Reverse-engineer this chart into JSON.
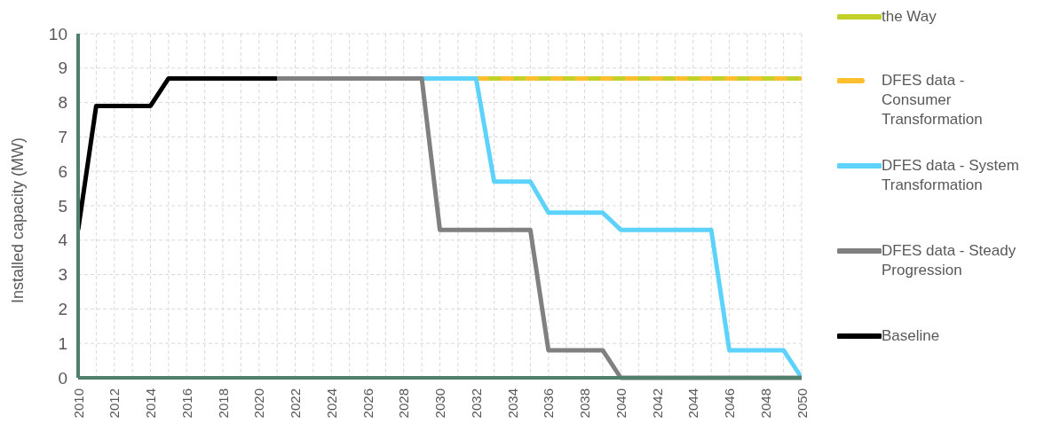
{
  "chart_data": {
    "type": "line",
    "ylabel": "Installed capacity (MW)",
    "x": [
      2010,
      2011,
      2012,
      2013,
      2014,
      2015,
      2016,
      2017,
      2018,
      2019,
      2020,
      2021,
      2022,
      2023,
      2024,
      2025,
      2026,
      2027,
      2028,
      2029,
      2030,
      2031,
      2032,
      2033,
      2034,
      2035,
      2036,
      2037,
      2038,
      2039,
      2040,
      2041,
      2042,
      2043,
      2044,
      2045,
      2046,
      2047,
      2048,
      2049,
      2050
    ],
    "series": [
      {
        "name": "the Way",
        "color": "#c2d02a",
        "line_style": "solid",
        "values": [
          null,
          null,
          null,
          null,
          null,
          null,
          null,
          null,
          null,
          null,
          null,
          null,
          null,
          null,
          null,
          null,
          null,
          null,
          null,
          null,
          null,
          null,
          8.7,
          8.7,
          8.7,
          8.7,
          8.7,
          8.7,
          8.7,
          8.7,
          8.7,
          8.7,
          8.7,
          8.7,
          8.7,
          8.7,
          8.7,
          8.7,
          8.7,
          8.7,
          8.7
        ]
      },
      {
        "name": "DFES data - Consumer Transformation",
        "color": "#fdbf2d",
        "line_style": "dashed",
        "values": [
          null,
          null,
          null,
          null,
          null,
          null,
          null,
          null,
          null,
          null,
          null,
          null,
          null,
          null,
          null,
          null,
          null,
          null,
          null,
          null,
          null,
          null,
          8.7,
          8.7,
          8.7,
          8.7,
          8.7,
          8.7,
          8.7,
          8.7,
          8.7,
          8.7,
          8.7,
          8.7,
          8.7,
          8.7,
          8.7,
          8.7,
          8.7,
          8.7,
          8.7
        ]
      },
      {
        "name": "DFES data - System Transformation",
        "color": "#5dd3fc",
        "line_style": "solid",
        "values": [
          null,
          null,
          null,
          null,
          null,
          null,
          null,
          null,
          null,
          null,
          null,
          null,
          null,
          null,
          null,
          null,
          null,
          null,
          null,
          8.7,
          8.7,
          8.7,
          8.7,
          5.7,
          5.7,
          5.7,
          4.8,
          4.8,
          4.8,
          4.8,
          4.3,
          4.3,
          4.3,
          4.3,
          4.3,
          4.3,
          0.8,
          0.8,
          0.8,
          0.8,
          0
        ]
      },
      {
        "name": "DFES data - Steady Progression",
        "color": "#808080",
        "line_style": "solid",
        "values": [
          null,
          null,
          null,
          null,
          null,
          null,
          null,
          null,
          null,
          null,
          null,
          8.7,
          8.7,
          8.7,
          8.7,
          8.7,
          8.7,
          8.7,
          8.7,
          8.7,
          4.3,
          4.3,
          4.3,
          4.3,
          4.3,
          4.3,
          0.8,
          0.8,
          0.8,
          0.8,
          0,
          0,
          0,
          0,
          0,
          0,
          0,
          0,
          0,
          0,
          0
        ]
      },
      {
        "name": "Baseline",
        "color": "#000000",
        "line_style": "solid",
        "values": [
          4.3,
          7.9,
          7.9,
          7.9,
          7.9,
          8.7,
          8.7,
          8.7,
          8.7,
          8.7,
          8.7,
          8.7,
          null,
          null,
          null,
          null,
          null,
          null,
          null,
          null,
          null,
          null,
          null,
          null,
          null,
          null,
          null,
          null,
          null,
          null,
          null,
          null,
          null,
          null,
          null,
          null,
          null,
          null,
          null,
          null,
          null
        ]
      }
    ],
    "xlim": [
      2010,
      2050
    ],
    "xticks": [
      2010,
      {
        "value": 2011,
        "label": null
      },
      2012,
      {
        "value": 2013,
        "label": null
      },
      2014,
      {
        "value": 2015,
        "label": null
      },
      2016,
      {
        "value": 2017,
        "label": null
      },
      2018,
      {
        "value": 2019,
        "label": null
      },
      2020,
      {
        "value": 2021,
        "label": null
      },
      2022,
      {
        "value": 2023,
        "label": null
      },
      2024,
      {
        "value": 2025,
        "label": null
      },
      2026,
      {
        "value": 2027,
        "label": null
      },
      2028,
      {
        "value": 2029,
        "label": null
      },
      2030,
      {
        "value": 2031,
        "label": null
      },
      2032,
      {
        "value": 2033,
        "label": null
      },
      2034,
      {
        "value": 2035,
        "label": null
      },
      2036,
      {
        "value": 2037,
        "label": null
      },
      2038,
      {
        "value": 2039,
        "label": null
      },
      2040,
      {
        "value": 2041,
        "label": null
      },
      2042,
      {
        "value": 2043,
        "label": null
      },
      2044,
      {
        "value": 2045,
        "label": null
      },
      2046,
      {
        "value": 2047,
        "label": null
      },
      2048,
      {
        "value": 2049,
        "label": null
      },
      2050
    ],
    "ylim": [
      0,
      10
    ],
    "yticks": [
      0,
      1,
      2,
      3,
      4,
      5,
      6,
      7,
      8,
      9,
      10
    ],
    "grid": true,
    "legend": "right",
    "marker": "none"
  }
}
